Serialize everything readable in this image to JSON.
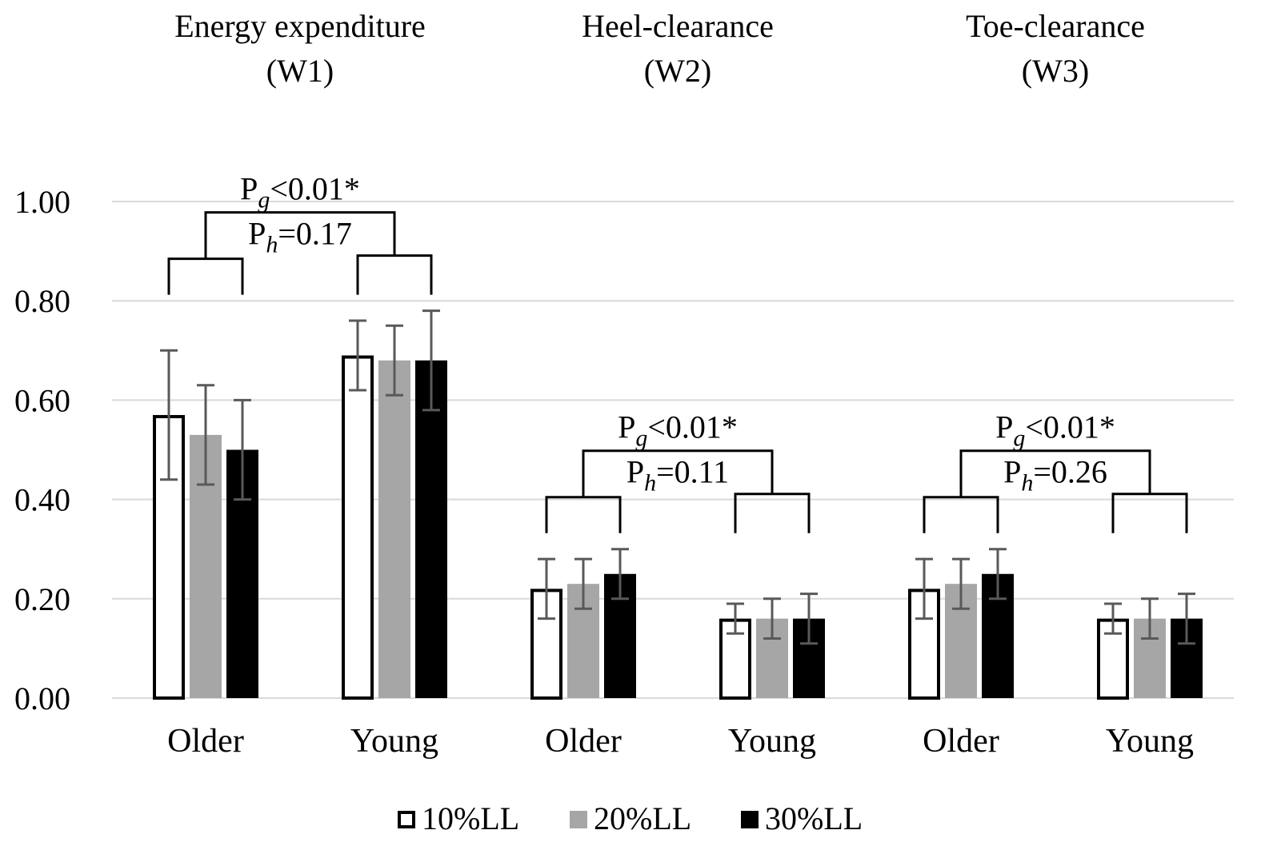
{
  "chart_data": {
    "type": "bar",
    "panels": [
      {
        "title_line1": "Energy expenditure",
        "title_line2": "(W1)",
        "categories": [
          "Older",
          "Young"
        ],
        "values": [
          [
            0.57,
            0.53,
            0.5
          ],
          [
            0.69,
            0.68,
            0.68
          ]
        ],
        "errors": [
          [
            0.13,
            0.1,
            0.1
          ],
          [
            0.07,
            0.07,
            0.1
          ]
        ],
        "pg": "<0.01*",
        "ph": "=0.17"
      },
      {
        "title_line1": "Heel-clearance",
        "title_line2": "(W2)",
        "categories": [
          "Older",
          "Young"
        ],
        "values": [
          [
            0.22,
            0.23,
            0.25
          ],
          [
            0.16,
            0.16,
            0.16
          ]
        ],
        "errors": [
          [
            0.06,
            0.05,
            0.05
          ],
          [
            0.03,
            0.04,
            0.05
          ]
        ],
        "pg": "<0.01*",
        "ph": "=0.11"
      },
      {
        "title_line1": "Toe-clearance",
        "title_line2": "(W3)",
        "categories": [
          "Older",
          "Young"
        ],
        "values": [
          [
            0.22,
            0.23,
            0.25
          ],
          [
            0.16,
            0.16,
            0.16
          ]
        ],
        "errors": [
          [
            0.06,
            0.05,
            0.05
          ],
          [
            0.03,
            0.04,
            0.05
          ]
        ],
        "pg": "<0.01*",
        "ph": "=0.26"
      }
    ],
    "series": [
      {
        "name": "10%LL",
        "fill": "#ffffff",
        "stroke": "#000000"
      },
      {
        "name": "20%LL",
        "fill": "#a6a6a6",
        "stroke": "#a6a6a6"
      },
      {
        "name": "30%LL",
        "fill": "#000000",
        "stroke": "#000000"
      }
    ],
    "yticks": [
      "0.00",
      "0.20",
      "0.40",
      "0.60",
      "0.80",
      "1.00"
    ],
    "ylim": [
      0,
      1.0
    ],
    "grid": true,
    "legend_position": "bottom",
    "p_symbol": "P",
    "pg_sub": "g",
    "ph_sub": "h",
    "colors": {
      "grid": "#d9d9d9",
      "error_bar": "#595959"
    }
  }
}
